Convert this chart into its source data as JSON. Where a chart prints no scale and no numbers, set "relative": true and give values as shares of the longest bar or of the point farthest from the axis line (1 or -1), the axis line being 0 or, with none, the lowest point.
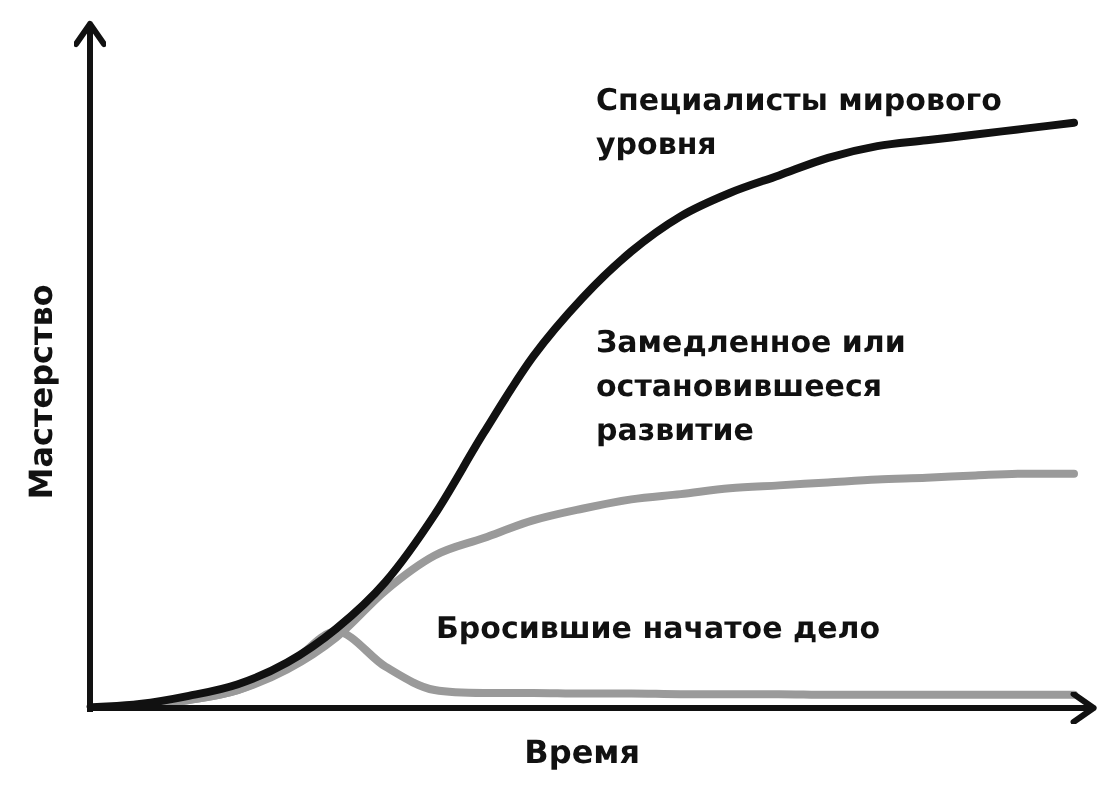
{
  "chart_data": {
    "type": "line",
    "relative": true,
    "xlabel": "Время",
    "ylabel": "Мастерство",
    "legend": false,
    "grid": false,
    "marker": "none",
    "line_style": "solid",
    "categories": [
      null,
      null,
      null,
      null,
      null,
      null,
      null,
      null,
      null,
      null,
      null,
      null,
      null,
      null,
      null,
      null,
      null,
      null,
      null,
      null,
      null
    ],
    "series": [
      {
        "name": "Специалисты мирового уровня",
        "color": "#111111",
        "values": [
          0,
          0.006,
          0.02,
          0.04,
          0.077,
          0.135,
          0.215,
          0.33,
          0.47,
          0.6,
          0.7,
          0.78,
          0.84,
          0.88,
          0.91,
          0.94,
          0.96,
          0.97,
          0.98,
          0.99,
          1.0
        ]
      },
      {
        "name": "Замедленное или остановившееся развитие",
        "color": "#9a9a9a",
        "values": [
          0,
          0.003,
          0.013,
          0.03,
          0.065,
          0.12,
          0.2,
          0.26,
          0.29,
          0.32,
          0.34,
          0.356,
          0.365,
          0.375,
          0.38,
          0.385,
          0.39,
          0.393,
          0.397,
          0.4,
          0.4
        ]
      },
      {
        "name": "Бросившие начатое дело",
        "color": "#9a9a9a",
        "values": [
          0,
          0.003,
          0.013,
          0.03,
          0.07,
          0.13,
          0.07,
          0.03,
          0.025,
          0.025,
          0.024,
          0.024,
          0.023,
          0.023,
          0.023,
          0.022,
          0.022,
          0.022,
          0.022,
          0.022,
          0.022
        ]
      }
    ]
  }
}
